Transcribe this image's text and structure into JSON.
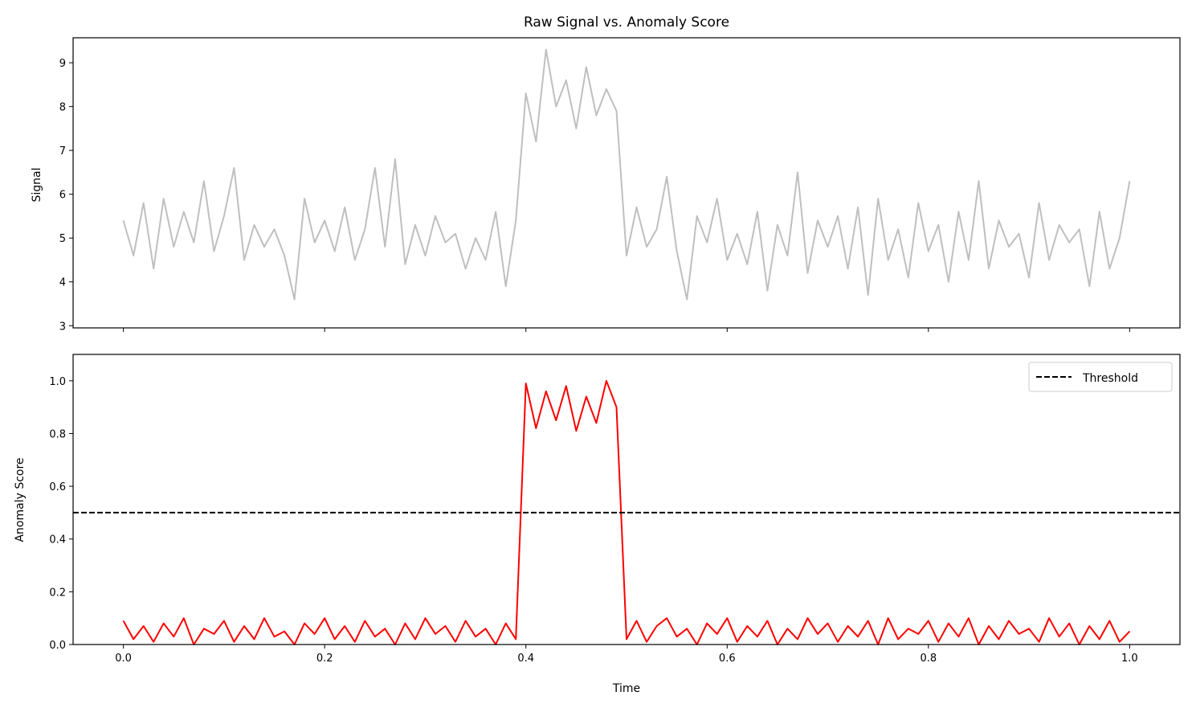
{
  "chart_data": [
    {
      "type": "line",
      "title": "Raw Signal vs. Anomaly Score",
      "xlabel": "",
      "ylabel": "Signal",
      "xlim": [
        -0.05,
        1.05
      ],
      "ylim": [
        2.95,
        9.57
      ],
      "xticks": [
        0.0,
        0.2,
        0.4,
        0.6,
        0.8,
        1.0
      ],
      "xtick_labels_visible": false,
      "yticks": [
        3,
        4,
        5,
        6,
        7,
        8,
        9
      ],
      "ytick_labels": [
        "3",
        "4",
        "5",
        "6",
        "7",
        "8",
        "9"
      ],
      "grid": false,
      "series": [
        {
          "name": "Signal",
          "color": "#bfbfbf",
          "x_start": 0.0,
          "x_end": 1.0,
          "values": [
            5.4,
            4.6,
            5.8,
            4.3,
            5.9,
            4.8,
            5.6,
            4.9,
            6.3,
            4.7,
            5.5,
            6.6,
            4.5,
            5.3,
            4.8,
            5.2,
            4.6,
            3.6,
            5.9,
            4.9,
            5.4,
            4.7,
            5.7,
            4.5,
            5.2,
            6.6,
            4.8,
            6.8,
            4.4,
            5.3,
            4.6,
            5.5,
            4.9,
            5.1,
            4.3,
            5.0,
            4.5,
            5.6,
            3.9,
            5.4,
            8.3,
            7.2,
            9.3,
            8.0,
            8.6,
            7.5,
            8.9,
            7.8,
            8.4,
            7.9,
            4.6,
            5.7,
            4.8,
            5.2,
            6.4,
            4.7,
            3.6,
            5.5,
            4.9,
            5.9,
            4.5,
            5.1,
            4.4,
            5.6,
            3.8,
            5.3,
            4.6,
            6.5,
            4.2,
            5.4,
            4.8,
            5.5,
            4.3,
            5.7,
            3.7,
            5.9,
            4.5,
            5.2,
            4.1,
            5.8,
            4.7,
            5.3,
            4.0,
            5.6,
            4.5,
            6.3,
            4.3,
            5.4,
            4.8,
            5.1,
            4.1,
            5.8,
            4.5,
            5.3,
            4.9,
            5.2,
            3.9,
            5.6,
            4.3,
            5.0,
            6.3
          ]
        }
      ]
    },
    {
      "type": "line",
      "title": "",
      "xlabel": "Time",
      "ylabel": "Anomaly Score",
      "xlim": [
        -0.05,
        1.05
      ],
      "ylim": [
        0.0,
        1.1
      ],
      "xticks": [
        0.0,
        0.2,
        0.4,
        0.6,
        0.8,
        1.0
      ],
      "xtick_labels": [
        "0.0",
        "0.2",
        "0.4",
        "0.6",
        "0.8",
        "1.0"
      ],
      "yticks": [
        0.0,
        0.2,
        0.4,
        0.6,
        0.8,
        1.0
      ],
      "ytick_labels": [
        "0.0",
        "0.2",
        "0.4",
        "0.6",
        "0.8",
        "1.0"
      ],
      "grid": false,
      "legend": {
        "placement": "top-right",
        "entries": [
          "Threshold"
        ]
      },
      "threshold": {
        "name": "Threshold",
        "value": 0.5,
        "color": "#000000",
        "style": "dashed"
      },
      "series": [
        {
          "name": "Anomaly Score",
          "color": "#ff0000",
          "x_start": 0.0,
          "x_end": 1.0,
          "values": [
            0.09,
            0.02,
            0.07,
            0.01,
            0.08,
            0.03,
            0.1,
            0.0,
            0.06,
            0.04,
            0.09,
            0.01,
            0.07,
            0.02,
            0.1,
            0.03,
            0.05,
            0.0,
            0.08,
            0.04,
            0.1,
            0.02,
            0.07,
            0.01,
            0.09,
            0.03,
            0.06,
            0.0,
            0.08,
            0.02,
            0.1,
            0.04,
            0.07,
            0.01,
            0.09,
            0.03,
            0.06,
            0.0,
            0.08,
            0.02,
            0.99,
            0.82,
            0.96,
            0.85,
            0.98,
            0.81,
            0.94,
            0.84,
            1.0,
            0.9,
            0.02,
            0.09,
            0.01,
            0.07,
            0.1,
            0.03,
            0.06,
            0.0,
            0.08,
            0.04,
            0.1,
            0.01,
            0.07,
            0.03,
            0.09,
            0.0,
            0.06,
            0.02,
            0.1,
            0.04,
            0.08,
            0.01,
            0.07,
            0.03,
            0.09,
            0.0,
            0.1,
            0.02,
            0.06,
            0.04,
            0.09,
            0.01,
            0.08,
            0.03,
            0.1,
            0.0,
            0.07,
            0.02,
            0.09,
            0.04,
            0.06,
            0.01,
            0.1,
            0.03,
            0.08,
            0.0,
            0.07,
            0.02,
            0.09,
            0.01,
            0.05
          ]
        }
      ]
    }
  ]
}
